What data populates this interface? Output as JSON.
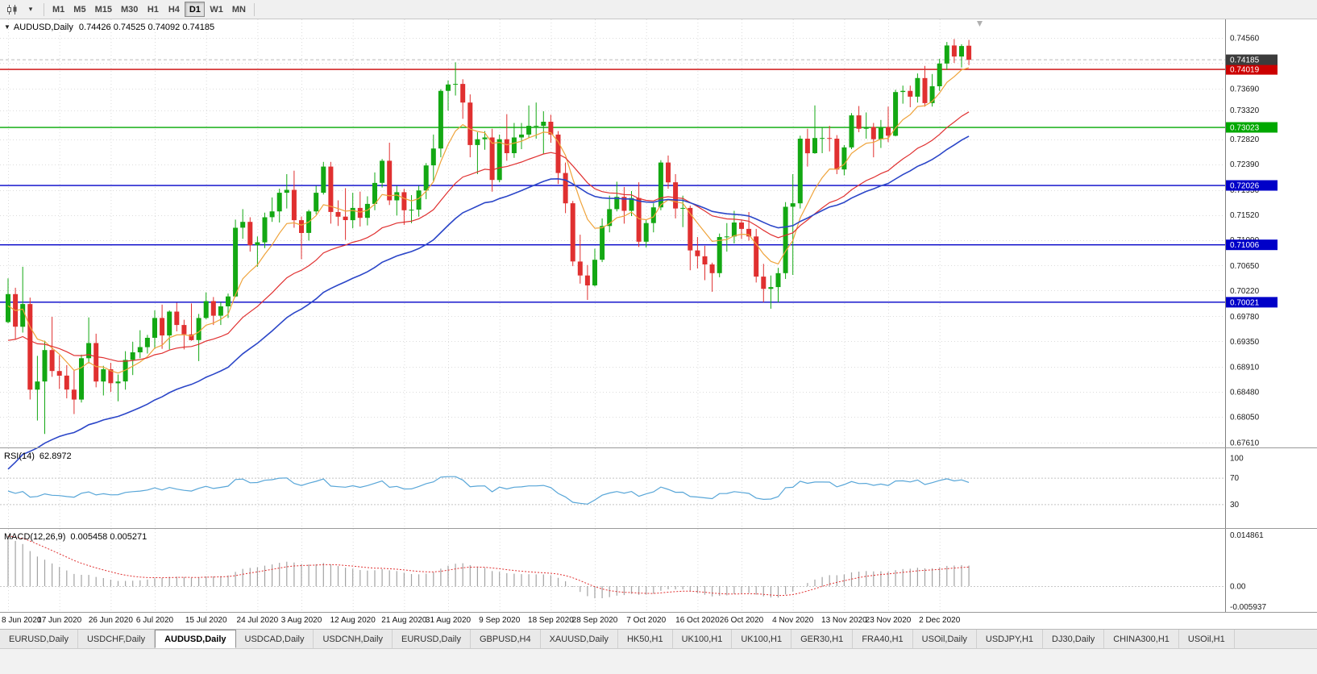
{
  "toolbar": {
    "menu_caret": "▾",
    "timeframes": [
      "M1",
      "M5",
      "M15",
      "M30",
      "H1",
      "H4",
      "D1",
      "W1",
      "MN"
    ],
    "active_timeframe": "D1"
  },
  "chart": {
    "symbol_label": "AUDUSD,Daily",
    "ohlc_text": "0.74426 0.74525 0.74092 0.74185",
    "title_marker": "▼",
    "current_price": {
      "label": "0.74185",
      "value": 0.74185,
      "badge_color": "#3c3c3c"
    },
    "price_axis_labels": [
      "0.74560",
      "0.74130",
      "0.73690",
      "0.73320",
      "0.72820",
      "0.72390",
      "0.71950",
      "0.71520",
      "0.71090",
      "0.70650",
      "0.70220",
      "0.69780",
      "0.69350",
      "0.68910",
      "0.68480",
      "0.68050",
      "0.67610"
    ],
    "levels": [
      {
        "value": 0.74019,
        "label": "0.74019",
        "color": "#cc0000"
      },
      {
        "value": 0.73023,
        "label": "0.73023",
        "color": "#00a800"
      },
      {
        "value": 0.72026,
        "label": "0.72026",
        "color": "#0000c8"
      },
      {
        "value": 0.71006,
        "label": "0.71006",
        "color": "#0000c8"
      },
      {
        "value": 0.70021,
        "label": "0.70021",
        "color": "#0000c8"
      }
    ],
    "colors": {
      "up": "#13a813",
      "down": "#e03030",
      "grid": "#dcdcdc",
      "ma_fast": "#efa33a",
      "ma_mid": "#e03030",
      "ma_slow": "#2b46c8",
      "axis_text": "#1a1a1a"
    }
  },
  "rsi_panel": {
    "label": "RSI(14)",
    "value": "62.8972",
    "axis_labels": [
      "100",
      "70",
      "30"
    ],
    "guide_levels": [
      70,
      30
    ],
    "line_color": "#58a6d8"
  },
  "macd_panel": {
    "label": "MACD(12,26,9)",
    "values_text": "0.005458 0.005271",
    "axis_labels": [
      {
        "text": "0.014861",
        "value": 0.014861
      },
      {
        "text": "0.00",
        "value": 0
      },
      {
        "text": "-0.005937",
        "value": -0.005937
      }
    ],
    "histogram_color": "#a3a3a3",
    "signal_color": "#e03030"
  },
  "time_axis": {
    "labels": [
      {
        "text": "8 Jun 2020",
        "index": 0
      },
      {
        "text": "17 Jun 2020",
        "index": 7
      },
      {
        "text": "26 Jun 2020",
        "index": 14
      },
      {
        "text": "6 Jul 2020",
        "index": 20
      },
      {
        "text": "15 Jul 2020",
        "index": 27
      },
      {
        "text": "24 Jul 2020",
        "index": 34
      },
      {
        "text": "3 Aug 2020",
        "index": 40
      },
      {
        "text": "12 Aug 2020",
        "index": 47
      },
      {
        "text": "21 Aug 2020",
        "index": 54
      },
      {
        "text": "31 Aug 2020",
        "index": 60
      },
      {
        "text": "9 Sep 2020",
        "index": 67
      },
      {
        "text": "18 Sep 2020",
        "index": 74
      },
      {
        "text": "28 Sep 2020",
        "index": 80
      },
      {
        "text": "7 Oct 2020",
        "index": 87
      },
      {
        "text": "16 Oct 2020",
        "index": 94
      },
      {
        "text": "26 Oct 2020",
        "index": 100
      },
      {
        "text": "4 Nov 2020",
        "index": 107
      },
      {
        "text": "13 Nov 2020",
        "index": 114
      },
      {
        "text": "23 Nov 2020",
        "index": 120
      },
      {
        "text": "2 Dec 2020",
        "index": 127
      }
    ]
  },
  "tabs": {
    "active_index": 2,
    "items": [
      "EURUSD,Daily",
      "USDCHF,Daily",
      "AUDUSD,Daily",
      "USDCAD,Daily",
      "USDCNH,Daily",
      "EURUSD,Daily",
      "GBPUSD,H4",
      "XAUUSD,Daily",
      "HK50,H1",
      "UK100,H1",
      "UK100,H1",
      "GER30,H1",
      "FRA40,H1",
      "USOil,Daily",
      "USDJPY,H1",
      "DJ30,Daily",
      "CHINA300,H1",
      "USOil,H1"
    ]
  },
  "chart_data": {
    "type": "candlestick",
    "symbol": "AUDUSD",
    "timeframe": "Daily",
    "title": "AUDUSD,Daily 0.74426 0.74525 0.74092 0.74185",
    "ohlc_current": [
      0.74426,
      0.74525,
      0.74092,
      0.74185
    ],
    "y_axis_range": [
      0.6761,
      0.7456
    ],
    "levels_drawn": [
      0.74019,
      0.73023,
      0.72026,
      0.71006,
      0.70021
    ],
    "indicators": [
      "RSI(14) 62.8972",
      "MACD(12,26,9) 0.005458 0.005271"
    ],
    "moving_averages": [
      {
        "period": 8,
        "color": "#efa33a"
      },
      {
        "period": 25,
        "color": "#e03030"
      },
      {
        "period": 40,
        "color": "#2b46c8"
      }
    ],
    "candles": [
      [
        0.6968,
        0.7043,
        0.6966,
        0.7016
      ],
      [
        0.7016,
        0.7027,
        0.6938,
        0.696
      ],
      [
        0.696,
        0.7063,
        0.695,
        0.6999
      ],
      [
        0.6999,
        0.701,
        0.6835,
        0.6852
      ],
      [
        0.6852,
        0.691,
        0.6799,
        0.6866
      ],
      [
        0.6866,
        0.6936,
        0.6776,
        0.692
      ],
      [
        0.692,
        0.6977,
        0.6874,
        0.6884
      ],
      [
        0.6884,
        0.6911,
        0.6853,
        0.6876
      ],
      [
        0.6876,
        0.6894,
        0.6837,
        0.6852
      ],
      [
        0.6852,
        0.6886,
        0.681,
        0.6835
      ],
      [
        0.6835,
        0.6912,
        0.683,
        0.6906
      ],
      [
        0.6906,
        0.6976,
        0.6897,
        0.6932
      ],
      [
        0.6932,
        0.6948,
        0.6856,
        0.6866
      ],
      [
        0.6866,
        0.6893,
        0.6842,
        0.6887
      ],
      [
        0.6887,
        0.6898,
        0.6848,
        0.6863
      ],
      [
        0.6863,
        0.6878,
        0.6832,
        0.6866
      ],
      [
        0.6866,
        0.6918,
        0.6852,
        0.6903
      ],
      [
        0.6903,
        0.6934,
        0.6877,
        0.6916
      ],
      [
        0.6916,
        0.6954,
        0.6906,
        0.6925
      ],
      [
        0.6925,
        0.6946,
        0.6914,
        0.6941
      ],
      [
        0.6941,
        0.6988,
        0.6922,
        0.6975
      ],
      [
        0.6975,
        0.6998,
        0.6922,
        0.6945
      ],
      [
        0.6945,
        0.6988,
        0.6921,
        0.6986
      ],
      [
        0.6986,
        0.7001,
        0.6952,
        0.6963
      ],
      [
        0.6963,
        0.6972,
        0.6921,
        0.6947
      ],
      [
        0.6947,
        0.7,
        0.6936,
        0.6937
      ],
      [
        0.6937,
        0.6982,
        0.6901,
        0.6975
      ],
      [
        0.6975,
        0.7019,
        0.6973,
        0.7004
      ],
      [
        0.7004,
        0.7011,
        0.6963,
        0.6979
      ],
      [
        0.6979,
        0.7002,
        0.6963,
        0.6995
      ],
      [
        0.6995,
        0.7017,
        0.6975,
        0.7012
      ],
      [
        0.7012,
        0.7144,
        0.7011,
        0.713
      ],
      [
        0.713,
        0.7162,
        0.7111,
        0.714
      ],
      [
        0.714,
        0.7148,
        0.7089,
        0.71
      ],
      [
        0.71,
        0.7115,
        0.7063,
        0.7105
      ],
      [
        0.7105,
        0.7156,
        0.7095,
        0.7148
      ],
      [
        0.7148,
        0.7182,
        0.714,
        0.7158
      ],
      [
        0.7158,
        0.7197,
        0.7139,
        0.719
      ],
      [
        0.719,
        0.7222,
        0.7163,
        0.7195
      ],
      [
        0.7195,
        0.7228,
        0.713,
        0.7143
      ],
      [
        0.7143,
        0.7149,
        0.7076,
        0.7121
      ],
      [
        0.7121,
        0.7161,
        0.7108,
        0.7158
      ],
      [
        0.7158,
        0.7202,
        0.7153,
        0.719
      ],
      [
        0.719,
        0.7243,
        0.7187,
        0.7235
      ],
      [
        0.7235,
        0.7243,
        0.7137,
        0.7157
      ],
      [
        0.7157,
        0.7177,
        0.7133,
        0.7149
      ],
      [
        0.7149,
        0.7198,
        0.7109,
        0.7143
      ],
      [
        0.7143,
        0.719,
        0.7129,
        0.7164
      ],
      [
        0.7164,
        0.7192,
        0.7132,
        0.7147
      ],
      [
        0.7147,
        0.7184,
        0.7134,
        0.7171
      ],
      [
        0.7171,
        0.7225,
        0.716,
        0.7207
      ],
      [
        0.7207,
        0.7248,
        0.7199,
        0.7245
      ],
      [
        0.7245,
        0.7276,
        0.7169,
        0.7177
      ],
      [
        0.7177,
        0.7202,
        0.7151,
        0.7191
      ],
      [
        0.7191,
        0.7197,
        0.7135,
        0.716
      ],
      [
        0.716,
        0.7186,
        0.7138,
        0.7161
      ],
      [
        0.7161,
        0.7202,
        0.7149,
        0.7194
      ],
      [
        0.7194,
        0.7241,
        0.7179,
        0.7237
      ],
      [
        0.7237,
        0.729,
        0.721,
        0.7266
      ],
      [
        0.7266,
        0.7368,
        0.7251,
        0.7365
      ],
      [
        0.7365,
        0.7383,
        0.7331,
        0.7376
      ],
      [
        0.7376,
        0.7414,
        0.7357,
        0.7377
      ],
      [
        0.7377,
        0.7385,
        0.7317,
        0.7345
      ],
      [
        0.7345,
        0.7359,
        0.7251,
        0.7272
      ],
      [
        0.7272,
        0.7294,
        0.7222,
        0.7282
      ],
      [
        0.7282,
        0.7296,
        0.7264,
        0.7285
      ],
      [
        0.7285,
        0.73,
        0.7192,
        0.7212
      ],
      [
        0.7212,
        0.729,
        0.7208,
        0.7282
      ],
      [
        0.7282,
        0.7325,
        0.7245,
        0.7258
      ],
      [
        0.7258,
        0.731,
        0.725,
        0.7285
      ],
      [
        0.7285,
        0.731,
        0.7265,
        0.729
      ],
      [
        0.729,
        0.734,
        0.7284,
        0.7305
      ],
      [
        0.7305,
        0.7345,
        0.7283,
        0.7305
      ],
      [
        0.7305,
        0.733,
        0.7256,
        0.7312
      ],
      [
        0.7312,
        0.7324,
        0.7276,
        0.729
      ],
      [
        0.729,
        0.7296,
        0.7205,
        0.7224
      ],
      [
        0.7224,
        0.7242,
        0.7155,
        0.7172
      ],
      [
        0.7172,
        0.7176,
        0.7064,
        0.7072
      ],
      [
        0.7072,
        0.7118,
        0.7034,
        0.7048
      ],
      [
        0.7048,
        0.7066,
        0.7006,
        0.7031
      ],
      [
        0.7031,
        0.7094,
        0.7029,
        0.7075
      ],
      [
        0.7075,
        0.7146,
        0.7071,
        0.7133
      ],
      [
        0.7133,
        0.7185,
        0.7122,
        0.7162
      ],
      [
        0.7162,
        0.7209,
        0.7158,
        0.7183
      ],
      [
        0.7183,
        0.72,
        0.7137,
        0.7159
      ],
      [
        0.7159,
        0.7193,
        0.715,
        0.7181
      ],
      [
        0.7181,
        0.7208,
        0.7097,
        0.7106
      ],
      [
        0.7106,
        0.7144,
        0.7096,
        0.7138
      ],
      [
        0.7138,
        0.7172,
        0.7122,
        0.7165
      ],
      [
        0.7165,
        0.7246,
        0.716,
        0.7242
      ],
      [
        0.7242,
        0.7254,
        0.7197,
        0.7208
      ],
      [
        0.7208,
        0.7222,
        0.7146,
        0.7163
      ],
      [
        0.7163,
        0.7185,
        0.7131,
        0.7164
      ],
      [
        0.7164,
        0.7168,
        0.7057,
        0.7091
      ],
      [
        0.7091,
        0.7114,
        0.706,
        0.7081
      ],
      [
        0.7081,
        0.7099,
        0.704,
        0.7067
      ],
      [
        0.7067,
        0.707,
        0.702,
        0.7052
      ],
      [
        0.7052,
        0.712,
        0.7045,
        0.7114
      ],
      [
        0.7114,
        0.7138,
        0.7089,
        0.7115
      ],
      [
        0.7115,
        0.7159,
        0.7103,
        0.7139
      ],
      [
        0.7139,
        0.7144,
        0.7111,
        0.7128
      ],
      [
        0.7128,
        0.7157,
        0.7108,
        0.7115
      ],
      [
        0.7115,
        0.7128,
        0.7036,
        0.7046
      ],
      [
        0.7046,
        0.7068,
        0.7002,
        0.7025
      ],
      [
        0.7025,
        0.7048,
        0.6991,
        0.7028
      ],
      [
        0.7028,
        0.7061,
        0.7002,
        0.7052
      ],
      [
        0.7052,
        0.7174,
        0.7042,
        0.7166
      ],
      [
        0.7166,
        0.7222,
        0.7049,
        0.7172
      ],
      [
        0.7172,
        0.7288,
        0.7163,
        0.7283
      ],
      [
        0.7283,
        0.73,
        0.7235,
        0.7258
      ],
      [
        0.7258,
        0.734,
        0.7257,
        0.7284
      ],
      [
        0.7284,
        0.7302,
        0.7258,
        0.7284
      ],
      [
        0.7284,
        0.7305,
        0.7261,
        0.7283
      ],
      [
        0.7283,
        0.7289,
        0.7222,
        0.723
      ],
      [
        0.723,
        0.7272,
        0.722,
        0.7268
      ],
      [
        0.7268,
        0.7327,
        0.7265,
        0.7323
      ],
      [
        0.7323,
        0.7339,
        0.7294,
        0.73
      ],
      [
        0.73,
        0.7328,
        0.7283,
        0.7303
      ],
      [
        0.7303,
        0.731,
        0.7251,
        0.7282
      ],
      [
        0.7282,
        0.7315,
        0.7267,
        0.7303
      ],
      [
        0.7303,
        0.7338,
        0.7277,
        0.7288
      ],
      [
        0.7288,
        0.7367,
        0.7287,
        0.7363
      ],
      [
        0.7363,
        0.7374,
        0.7343,
        0.7365
      ],
      [
        0.7365,
        0.7374,
        0.7337,
        0.7355
      ],
      [
        0.7355,
        0.7395,
        0.7345,
        0.7387
      ],
      [
        0.7387,
        0.7408,
        0.7338,
        0.7344
      ],
      [
        0.7344,
        0.7394,
        0.7338,
        0.7373
      ],
      [
        0.7373,
        0.742,
        0.7365,
        0.7412
      ],
      [
        0.7412,
        0.7449,
        0.7401,
        0.7443
      ],
      [
        0.7443,
        0.7454,
        0.7413,
        0.7424
      ],
      [
        0.7424,
        0.7445,
        0.7405,
        0.7442
      ],
      [
        0.74426,
        0.74525,
        0.74092,
        0.74185
      ]
    ]
  }
}
